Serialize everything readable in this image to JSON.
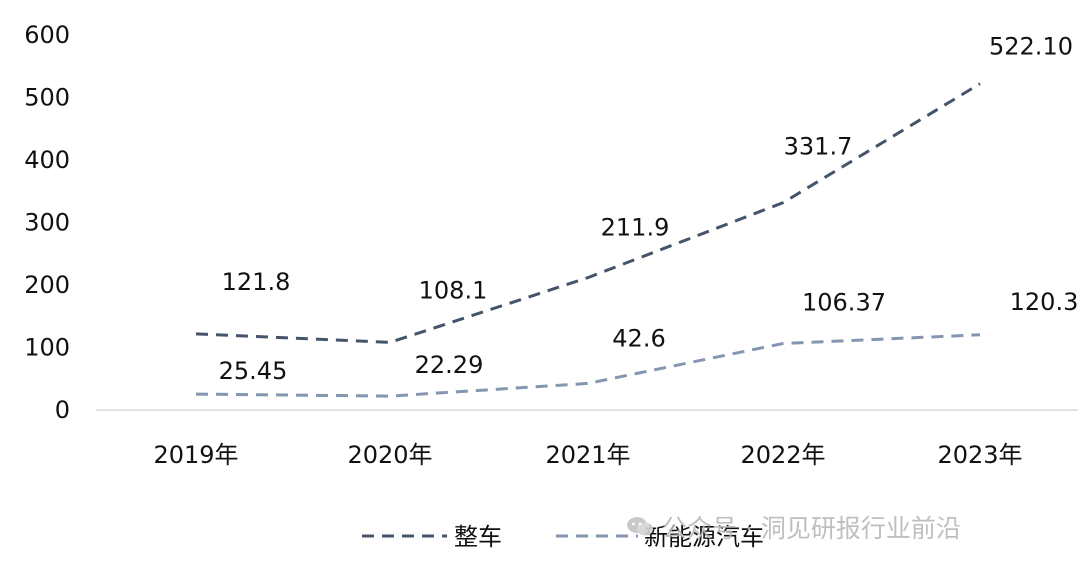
{
  "chart_data": {
    "type": "line",
    "categories": [
      "2019年",
      "2020年",
      "2021年",
      "2022年",
      "2023年"
    ],
    "series": [
      {
        "name": "整车",
        "values": [
          121.8,
          108.1,
          211.9,
          331.7,
          522.1
        ],
        "value_labels": [
          "121.8",
          "108.1",
          "211.9",
          "331.7",
          "522.10"
        ],
        "color": "#44546a",
        "dash": "dashed"
      },
      {
        "name": "新能源汽车",
        "values": [
          25.45,
          22.29,
          42.6,
          106.37,
          120.3
        ],
        "value_labels": [
          "25.45",
          "22.29",
          "42.6",
          "106.37",
          "120.3"
        ],
        "color": "#8496b0",
        "dash": "dashed"
      }
    ],
    "ylim": [
      0,
      600
    ],
    "yticks": [
      0,
      100,
      200,
      300,
      400,
      500,
      600
    ],
    "grid": false,
    "legend": "bottom-center"
  },
  "watermark": {
    "text": "公众号 · 洞见研报行业前沿",
    "icon": "wechat-icon"
  }
}
